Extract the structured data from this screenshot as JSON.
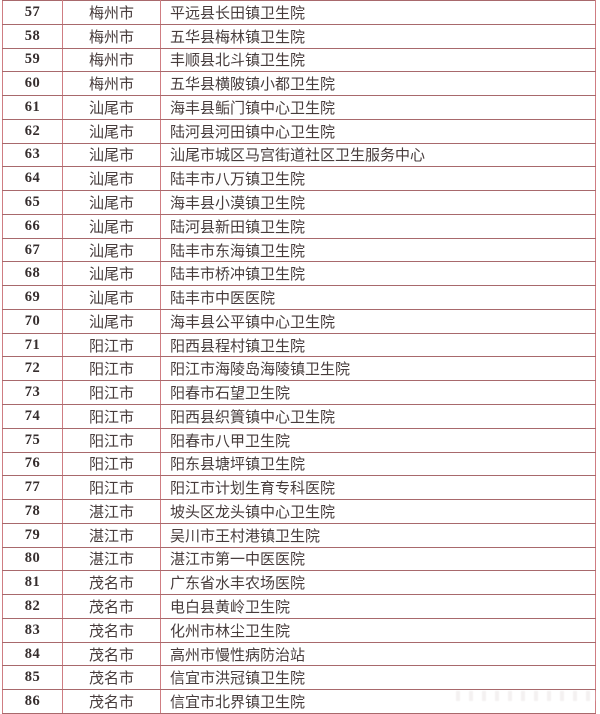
{
  "colors": {
    "border_horizontal": "#a8696c",
    "border_vertical": "#cf7d82",
    "number_text": "#362e2e",
    "body_text": "#473c3c",
    "background": "#ffffff"
  },
  "table": {
    "rows": [
      {
        "num": "57",
        "city": "梅州市",
        "name": "平远县长田镇卫生院"
      },
      {
        "num": "58",
        "city": "梅州市",
        "name": "五华县梅林镇卫生院"
      },
      {
        "num": "59",
        "city": "梅州市",
        "name": "丰顺县北斗镇卫生院"
      },
      {
        "num": "60",
        "city": "梅州市",
        "name": "五华县横陂镇小都卫生院"
      },
      {
        "num": "61",
        "city": "汕尾市",
        "name": "海丰县鲘门镇中心卫生院"
      },
      {
        "num": "62",
        "city": "汕尾市",
        "name": "陆河县河田镇中心卫生院"
      },
      {
        "num": "63",
        "city": "汕尾市",
        "name": "汕尾市城区马宫街道社区卫生服务中心"
      },
      {
        "num": "64",
        "city": "汕尾市",
        "name": "陆丰市八万镇卫生院"
      },
      {
        "num": "65",
        "city": "汕尾市",
        "name": "海丰县小漠镇卫生院"
      },
      {
        "num": "66",
        "city": "汕尾市",
        "name": "陆河县新田镇卫生院"
      },
      {
        "num": "67",
        "city": "汕尾市",
        "name": "陆丰市东海镇卫生院"
      },
      {
        "num": "68",
        "city": "汕尾市",
        "name": "陆丰市桥冲镇卫生院"
      },
      {
        "num": "69",
        "city": "汕尾市",
        "name": "陆丰市中医医院"
      },
      {
        "num": "70",
        "city": "汕尾市",
        "name": "海丰县公平镇中心卫生院"
      },
      {
        "num": "71",
        "city": "阳江市",
        "name": "阳西县程村镇卫生院"
      },
      {
        "num": "72",
        "city": "阳江市",
        "name": "阳江市海陵岛海陵镇卫生院"
      },
      {
        "num": "73",
        "city": "阳江市",
        "name": "阳春市石望卫生院"
      },
      {
        "num": "74",
        "city": "阳江市",
        "name": "阳西县织篢镇中心卫生院"
      },
      {
        "num": "75",
        "city": "阳江市",
        "name": "阳春市八甲卫生院"
      },
      {
        "num": "76",
        "city": "阳江市",
        "name": "阳东县塘坪镇卫生院"
      },
      {
        "num": "77",
        "city": "阳江市",
        "name": "阳江市计划生育专科医院"
      },
      {
        "num": "78",
        "city": "湛江市",
        "name": "坡头区龙头镇中心卫生院"
      },
      {
        "num": "79",
        "city": "湛江市",
        "name": "吴川市王村港镇卫生院"
      },
      {
        "num": "80",
        "city": "湛江市",
        "name": "湛江市第一中医医院"
      },
      {
        "num": "81",
        "city": "茂名市",
        "name": "广东省水丰农场医院"
      },
      {
        "num": "82",
        "city": "茂名市",
        "name": "电白县黄岭卫生院"
      },
      {
        "num": "83",
        "city": "茂名市",
        "name": "化州市林尘卫生院"
      },
      {
        "num": "84",
        "city": "茂名市",
        "name": "高州市慢性病防治站"
      },
      {
        "num": "85",
        "city": "茂名市",
        "name": "信宜市洪冠镇卫生院"
      },
      {
        "num": "86",
        "city": "茂名市",
        "name": "信宜市北界镇卫生院"
      }
    ]
  }
}
